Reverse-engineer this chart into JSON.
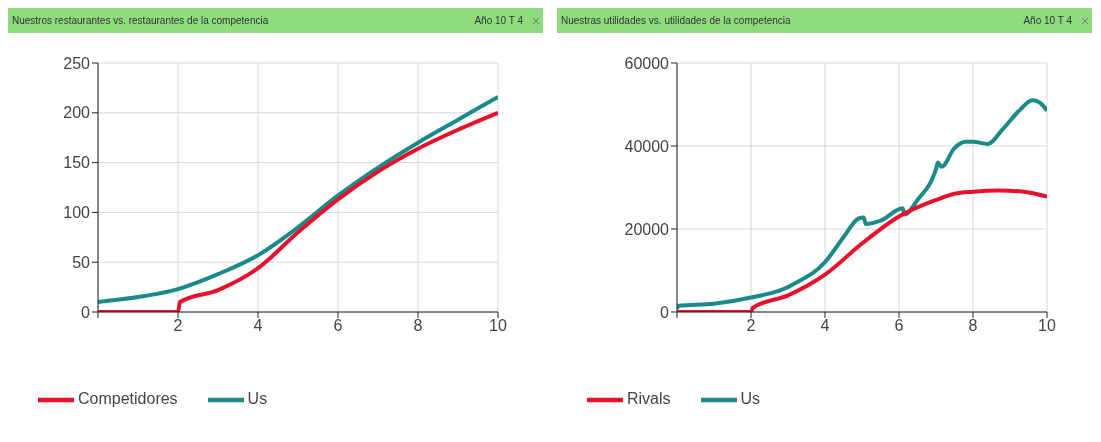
{
  "chart_data": [
    {
      "type": "line",
      "title": "Nuestros restaurantes vs. restaurantes de la competencia",
      "subtitle": "Año 10 T 4",
      "xlim": [
        0,
        10
      ],
      "xticks": [
        {
          "value": 0,
          "label": null
        },
        2,
        4,
        6,
        8,
        10
      ],
      "ylim": [
        0,
        250
      ],
      "yticks": [
        0,
        50,
        100,
        150,
        200,
        250
      ],
      "grid": true,
      "legend": "bottom",
      "line_style": "solid",
      "marker": "none",
      "series": [
        {
          "name": "Us",
          "color": "#1b8a8a",
          "x": [
            0,
            1,
            2,
            3,
            4,
            5,
            6,
            7,
            8,
            9,
            10
          ],
          "values": [
            10,
            15,
            23,
            38,
            57,
            85,
            117,
            145,
            170,
            193,
            216
          ]
        },
        {
          "name": "Competidores",
          "color": "#e8102a",
          "x": [
            0,
            1,
            2,
            2.05,
            3,
            4,
            5,
            6,
            7,
            8,
            9,
            10
          ],
          "values": [
            0,
            0,
            0,
            10,
            22,
            44,
            80,
            113,
            141,
            164,
            183,
            200
          ]
        }
      ]
    },
    {
      "type": "line",
      "title": "Nuestras utilidades vs. utilidades de la competencia",
      "subtitle": "Año 10 T 4",
      "xlim": [
        0,
        10
      ],
      "xticks": [
        {
          "value": 0,
          "label": null
        },
        2,
        4,
        6,
        8,
        10
      ],
      "ylim": [
        0,
        60000
      ],
      "yticks": [
        0,
        20000,
        40000,
        60000
      ],
      "grid": true,
      "legend": "bottom",
      "line_style": "solid",
      "marker": "none",
      "series": [
        {
          "name": "Us",
          "color": "#1b8a8a",
          "x": [
            0,
            0.05,
            1,
            2,
            3,
            3.1,
            4,
            4.5,
            4.9,
            5.05,
            5.1,
            5.5,
            6.1,
            6.15,
            6.5,
            7,
            7.05,
            7.15,
            7.5,
            7.8,
            8,
            8.4,
            8.8,
            9.3,
            9.6,
            9.8,
            10
          ],
          "values": [
            800,
            1500,
            2000,
            3500,
            6000,
            6500,
            12000,
            18000,
            22500,
            22800,
            21200,
            22000,
            25000,
            23500,
            27000,
            34500,
            36000,
            35000,
            39500,
            41000,
            41000,
            40500,
            44000,
            49000,
            51000,
            50500,
            48500
          ]
        },
        {
          "name": "Rivals",
          "color": "#e8102a",
          "x": [
            0,
            1,
            2,
            2.05,
            3,
            4,
            5,
            6,
            7,
            7.5,
            8,
            8.7,
            9.5,
            10
          ],
          "values": [
            0,
            0,
            0,
            1000,
            4000,
            9000,
            16500,
            23000,
            27000,
            28500,
            29000,
            29300,
            28800,
            27800
          ]
        }
      ]
    }
  ]
}
